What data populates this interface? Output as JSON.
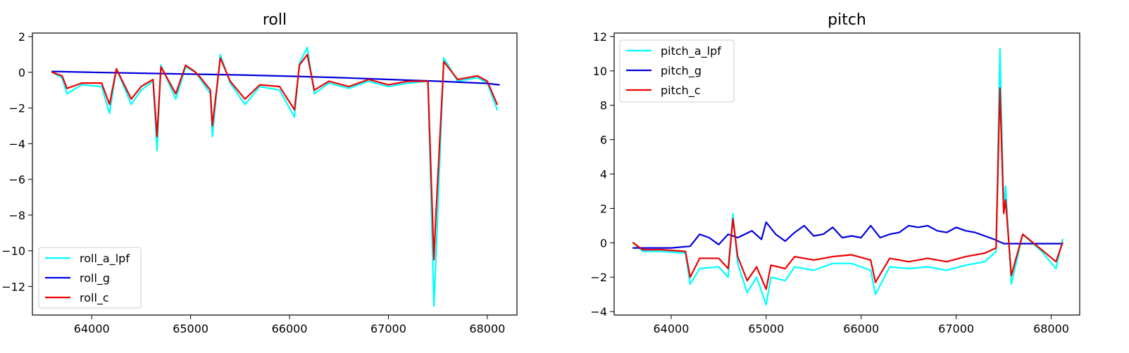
{
  "chart_data": [
    {
      "type": "line",
      "title": "roll",
      "xlabel": "",
      "ylabel": "",
      "xlim": [
        63400,
        68300
      ],
      "ylim": [
        -13.6,
        2.2
      ],
      "xticks": [
        64000,
        65000,
        66000,
        67000,
        68000
      ],
      "yticks": [
        2,
        0,
        -2,
        -4,
        -6,
        -8,
        -10,
        -12
      ],
      "xtick_labels": [
        "64000",
        "65000",
        "66000",
        "67000",
        "68000"
      ],
      "ytick_labels": [
        "2",
        "0",
        "−2",
        "−4",
        "−6",
        "−8",
        "−10",
        "−12"
      ],
      "grid": false,
      "legend_position": "lower-left",
      "series": [
        {
          "name": "roll_a_lpf",
          "color": "#00ffff",
          "x": [
            63600,
            63700,
            63750,
            63900,
            64100,
            64180,
            64250,
            64400,
            64500,
            64620,
            64660,
            64700,
            64850,
            64950,
            65050,
            65100,
            65200,
            65220,
            65300,
            65400,
            65550,
            65700,
            65900,
            66050,
            66100,
            66180,
            66250,
            66400,
            66600,
            66800,
            67000,
            67200,
            67400,
            67460,
            67480,
            67560,
            67700,
            67900,
            68000,
            68100
          ],
          "y": [
            0.0,
            -0.3,
            -1.2,
            -0.7,
            -0.8,
            -2.3,
            0.2,
            -1.8,
            -1.0,
            -0.5,
            -4.4,
            0.4,
            -1.5,
            0.3,
            0.0,
            -0.4,
            -1.2,
            -3.6,
            1.0,
            -0.6,
            -1.8,
            -0.8,
            -1.0,
            -2.5,
            0.5,
            1.4,
            -1.2,
            -0.6,
            -0.9,
            -0.5,
            -0.8,
            -0.6,
            -0.5,
            -13.1,
            -10.5,
            0.8,
            -0.5,
            -0.3,
            -0.6,
            -2.1
          ]
        },
        {
          "name": "roll_g",
          "color": "#0000dd",
          "x": [
            63600,
            64000,
            64500,
            65000,
            65500,
            66000,
            66500,
            67000,
            67500,
            68000,
            68120
          ],
          "y": [
            0.05,
            0.0,
            -0.05,
            -0.1,
            -0.15,
            -0.22,
            -0.3,
            -0.4,
            -0.5,
            -0.62,
            -0.7
          ]
        },
        {
          "name": "roll_c",
          "color": "#ee0000",
          "x": [
            63600,
            63700,
            63750,
            63900,
            64100,
            64180,
            64250,
            64400,
            64500,
            64620,
            64660,
            64700,
            64850,
            64950,
            65050,
            65100,
            65200,
            65220,
            65300,
            65400,
            65550,
            65700,
            65900,
            66050,
            66100,
            66180,
            66250,
            66400,
            66600,
            66800,
            67000,
            67200,
            67400,
            67460,
            67480,
            67560,
            67700,
            67900,
            68000,
            68100
          ],
          "y": [
            0.0,
            -0.2,
            -0.9,
            -0.6,
            -0.6,
            -1.8,
            0.2,
            -1.5,
            -0.8,
            -0.4,
            -3.6,
            0.3,
            -1.2,
            0.4,
            0.0,
            -0.3,
            -1.0,
            -3.0,
            0.8,
            -0.5,
            -1.5,
            -0.7,
            -0.8,
            -2.1,
            0.4,
            1.0,
            -1.0,
            -0.5,
            -0.8,
            -0.4,
            -0.7,
            -0.5,
            -0.5,
            -10.5,
            -8.0,
            0.6,
            -0.4,
            -0.2,
            -0.5,
            -1.8
          ]
        }
      ]
    },
    {
      "type": "line",
      "title": "pitch",
      "xlabel": "",
      "ylabel": "",
      "xlim": [
        63400,
        68300
      ],
      "ylim": [
        -4.2,
        12.2
      ],
      "xticks": [
        64000,
        65000,
        66000,
        67000,
        68000
      ],
      "yticks": [
        12,
        10,
        8,
        6,
        4,
        2,
        0,
        -2,
        -4
      ],
      "xtick_labels": [
        "64000",
        "65000",
        "66000",
        "67000",
        "68000"
      ],
      "ytick_labels": [
        "12",
        "10",
        "8",
        "6",
        "4",
        "2",
        "0",
        "−2",
        "−4"
      ],
      "grid": false,
      "legend_position": "upper-left",
      "series": [
        {
          "name": "pitch_a_lpf",
          "color": "#00ffff",
          "x": [
            63600,
            63700,
            63900,
            64150,
            64200,
            64300,
            64500,
            64600,
            64650,
            64700,
            64800,
            64900,
            65000,
            65050,
            65200,
            65300,
            65500,
            65700,
            65900,
            66100,
            66150,
            66300,
            66500,
            66700,
            66900,
            67100,
            67300,
            67420,
            67460,
            67500,
            67520,
            67580,
            67700,
            67900,
            68050,
            68120
          ],
          "y": [
            0.0,
            -0.5,
            -0.5,
            -0.6,
            -2.4,
            -1.5,
            -1.4,
            -2.0,
            1.7,
            -1.2,
            -2.9,
            -2.0,
            -3.6,
            -2.0,
            -2.2,
            -1.4,
            -1.6,
            -1.2,
            -1.2,
            -1.6,
            -3.0,
            -1.4,
            -1.5,
            -1.4,
            -1.6,
            -1.3,
            -1.1,
            -0.5,
            11.3,
            2.0,
            3.3,
            -2.4,
            0.5,
            -0.5,
            -1.5,
            0.2
          ]
        },
        {
          "name": "pitch_g",
          "color": "#0000dd",
          "x": [
            63600,
            63800,
            64000,
            64200,
            64300,
            64400,
            64500,
            64600,
            64700,
            64850,
            64950,
            65000,
            65100,
            65200,
            65300,
            65400,
            65500,
            65600,
            65700,
            65800,
            65900,
            66000,
            66100,
            66200,
            66300,
            66400,
            66500,
            66600,
            66700,
            66800,
            66900,
            67000,
            67100,
            67200,
            67300,
            67400,
            67500,
            67700,
            67900,
            68100
          ],
          "y": [
            -0.3,
            -0.3,
            -0.3,
            -0.2,
            0.5,
            0.3,
            -0.1,
            0.5,
            0.3,
            0.7,
            0.2,
            1.2,
            0.5,
            0.1,
            0.6,
            1.0,
            0.4,
            0.5,
            0.9,
            0.3,
            0.4,
            0.3,
            1.0,
            0.3,
            0.5,
            0.6,
            1.0,
            0.9,
            1.0,
            0.7,
            0.6,
            0.9,
            0.7,
            0.6,
            0.4,
            0.2,
            -0.05,
            -0.05,
            -0.05,
            -0.05
          ]
        },
        {
          "name": "pitch_c",
          "color": "#ee0000",
          "x": [
            63600,
            63700,
            63900,
            64150,
            64200,
            64300,
            64500,
            64600,
            64650,
            64700,
            64800,
            64900,
            65000,
            65050,
            65200,
            65300,
            65500,
            65700,
            65900,
            66100,
            66150,
            66300,
            66500,
            66700,
            66900,
            67100,
            67300,
            67420,
            67460,
            67500,
            67520,
            67580,
            67700,
            67900,
            68050,
            68120
          ],
          "y": [
            0.0,
            -0.4,
            -0.4,
            -0.5,
            -2.0,
            -0.9,
            -0.9,
            -1.5,
            1.4,
            -0.8,
            -2.2,
            -1.4,
            -2.7,
            -1.3,
            -1.5,
            -0.8,
            -1.0,
            -0.8,
            -0.7,
            -1.0,
            -2.3,
            -0.9,
            -1.1,
            -0.9,
            -1.1,
            -0.8,
            -0.6,
            -0.3,
            9.0,
            1.7,
            2.5,
            -1.9,
            0.5,
            -0.4,
            -1.1,
            0.0
          ]
        }
      ]
    }
  ]
}
